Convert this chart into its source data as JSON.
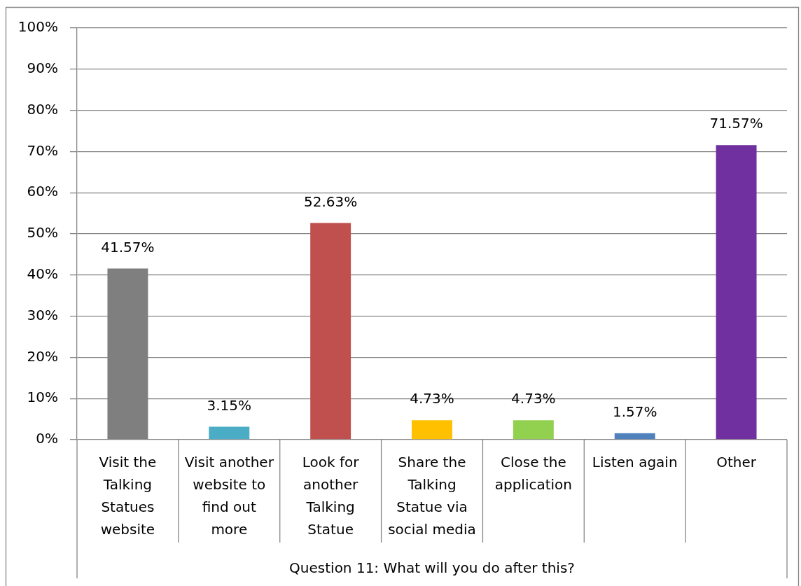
{
  "chart_data": {
    "type": "bar",
    "xlabel": "Question 11: What will you do after this?",
    "categories": [
      "Visit the Talking Statues website",
      "Visit another website to find out more",
      "Look for another Talking Statue",
      "Share the Talking Statue via social media",
      "Close the application",
      "Listen again",
      "Other"
    ],
    "values": [
      41.57,
      3.15,
      52.63,
      4.73,
      4.73,
      1.57,
      71.57
    ],
    "colors": [
      "#7f7f7f",
      "#4bacc6",
      "#c0504d",
      "#ffc000",
      "#92d050",
      "#4f81bd",
      "#7030a0"
    ],
    "value_labels": [
      "41.57%",
      "3.15%",
      "52.63%",
      "4.73%",
      "4.73%",
      "1.57%",
      "71.57%"
    ],
    "ylim": [
      0,
      100
    ],
    "yticks": [
      {
        "value": 0,
        "label": "0%"
      },
      {
        "value": 10,
        "label": "10%"
      },
      {
        "value": 20,
        "label": "20%"
      },
      {
        "value": 30,
        "label": "30%"
      },
      {
        "value": 40,
        "label": "40%"
      },
      {
        "value": 50,
        "label": "50%"
      },
      {
        "value": 60,
        "label": "60%"
      },
      {
        "value": 70,
        "label": "70%"
      },
      {
        "value": 80,
        "label": "80%"
      },
      {
        "value": 90,
        "label": "90%"
      },
      {
        "value": 100,
        "label": "100%"
      }
    ],
    "grid": "y"
  }
}
